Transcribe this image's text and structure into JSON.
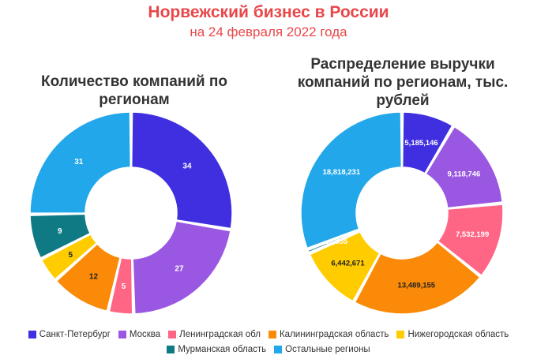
{
  "header": {
    "title": "Норвежский бизнес в России",
    "subtitle": "на 24 февраля 2022 года"
  },
  "chart_data": [
    {
      "type": "pie",
      "title": "Количество компаний по регионам",
      "categories": [
        "Санкт-Петербург",
        "Москва",
        "Ленинградская обл",
        "Калининградская область",
        "Нижегородская область",
        "Мурманская область",
        "Остальные регионы"
      ],
      "values": [
        34,
        27,
        5,
        12,
        5,
        9,
        31
      ],
      "labels": [
        "34",
        "27",
        "5",
        "12",
        "5",
        "9",
        "31"
      ],
      "colors": [
        "#3f2fe0",
        "#9a58e2",
        "#ff6585",
        "#fa8a07",
        "#ffcc00",
        "#0f7a84",
        "#22a7ea"
      ]
    },
    {
      "type": "pie",
      "title": "Распределение выручки компаний по регионам, тыс. рублей",
      "categories": [
        "Санкт-Петербург",
        "Москва",
        "Ленинградская обл",
        "Калининградская область",
        "Нижегородская область",
        "Мурманская область",
        "Остальные регионы"
      ],
      "values": [
        5185146,
        9118746,
        7532199,
        13489155,
        6442671,
        426855,
        18818231
      ],
      "labels": [
        "5,185,146",
        "9,118,746",
        "7,532,199",
        "13,489,155",
        "6,442,671",
        "426,855",
        "18,818,231"
      ],
      "colors": [
        "#3f2fe0",
        "#9a58e2",
        "#ff6585",
        "#fa8a07",
        "#ffcc00",
        "#0f7a84",
        "#22a7ea"
      ]
    }
  ],
  "legend": [
    {
      "label": "Санкт-Петербург",
      "color": "#3f2fe0"
    },
    {
      "label": "Москва",
      "color": "#9a58e2"
    },
    {
      "label": "Ленинградская обл",
      "color": "#ff6585"
    },
    {
      "label": "Калининградская область",
      "color": "#fa8a07"
    },
    {
      "label": "Нижегородская область",
      "color": "#ffcc00"
    },
    {
      "label": "Мурманская область",
      "color": "#0f7a84"
    },
    {
      "label": "Остальные регионы",
      "color": "#22a7ea"
    }
  ]
}
